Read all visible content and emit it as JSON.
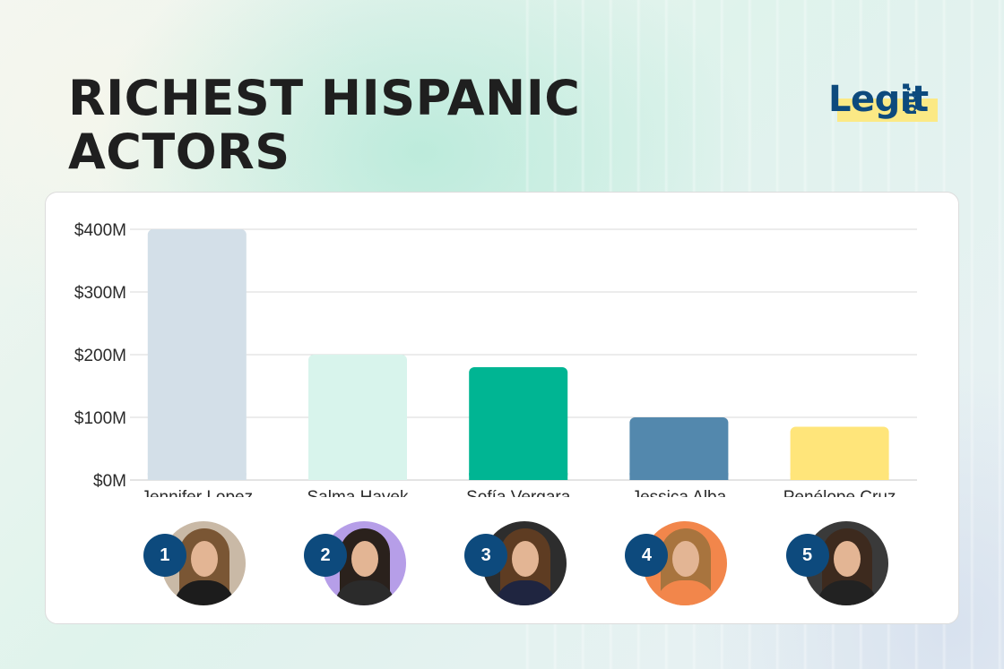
{
  "title": "RICHEST HISPANIC\nACTORS",
  "logo": {
    "word": "Legit",
    "tld": ".ng"
  },
  "chart_data": {
    "type": "bar",
    "categories": [
      "Jennifer Lopez",
      "Salma Hayek",
      "Sofía Vergara",
      "Jessica Alba",
      "Penélope Cruz"
    ],
    "values": [
      400,
      200,
      180,
      100,
      85
    ],
    "unit": "M",
    "colors": [
      "#d3dfe8",
      "#d8f4ec",
      "#00b593",
      "#5388ad",
      "#ffe57a"
    ],
    "ylim": [
      0,
      400
    ],
    "yticks": [
      0,
      100,
      200,
      300,
      400
    ],
    "ytick_labels": [
      "$0M",
      "$100M",
      "$200M",
      "$300M",
      "$400M"
    ],
    "grid": true,
    "xlabel": "",
    "ylabel": ""
  },
  "avatars": [
    {
      "rank": "1",
      "name": "Jennifer Lopez",
      "bg": "#c9b9a6",
      "hair": "#7a5634",
      "top": "#1c1c1c"
    },
    {
      "rank": "2",
      "name": "Salma Hayek",
      "bg": "#b69ee8",
      "hair": "#2a211c",
      "top": "#2b2b2b"
    },
    {
      "rank": "3",
      "name": "Sofía Vergara",
      "bg": "#2d2d2d",
      "hair": "#5e3c22",
      "top": "#1f2540"
    },
    {
      "rank": "4",
      "name": "Jessica Alba",
      "bg": "#f2864b",
      "hair": "#a8743e",
      "top": "#f2864b"
    },
    {
      "rank": "5",
      "name": "Penélope Cruz",
      "bg": "#3a3a3a",
      "hair": "#3d2a1e",
      "top": "#222222"
    }
  ]
}
